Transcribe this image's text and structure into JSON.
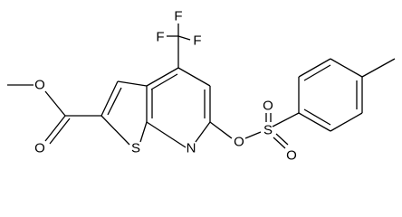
{
  "nodes": [
    {
      "label": "F"
    },
    {
      "label": "F"
    },
    {
      "label": "F"
    },
    {
      "label": "O"
    },
    {
      "label": "O"
    },
    {
      "label": "S"
    },
    {
      "label": "N"
    },
    {
      "label": "O"
    },
    {
      "label": "S"
    },
    {
      "label": "O"
    },
    {
      "label": "O"
    }
  ]
}
